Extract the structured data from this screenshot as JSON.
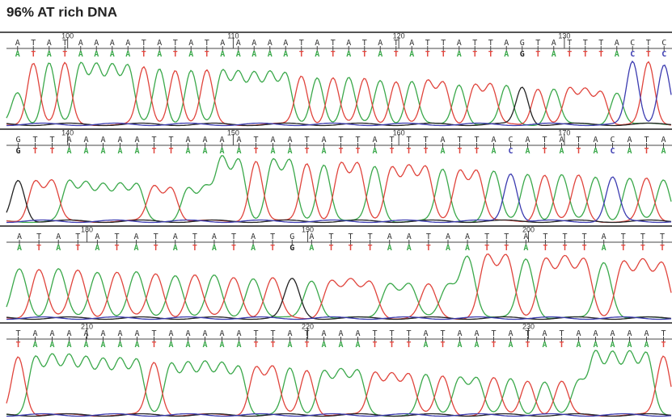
{
  "title": "96% AT rich DNA",
  "panels": [
    {
      "positions": [
        100,
        110,
        120,
        130
      ],
      "bases": [
        "A",
        "T",
        "A",
        "T",
        "A",
        "A",
        "A",
        "A",
        "T",
        "A",
        "T",
        "A",
        "T",
        "A",
        "A",
        "A",
        "A",
        "A",
        "T",
        "A",
        "T",
        "A",
        "T",
        "A",
        "T",
        "A",
        "T",
        "T",
        "A",
        "T",
        "T",
        "A",
        "G",
        "T",
        "A",
        "T",
        "T",
        "T",
        "A",
        "C",
        "T",
        "C"
      ]
    },
    {
      "positions": [
        140,
        150,
        160,
        170
      ],
      "bases": [
        "G",
        "T",
        "T",
        "A",
        "A",
        "A",
        "A",
        "A",
        "T",
        "T",
        "A",
        "A",
        "A",
        "A",
        "T",
        "A",
        "A",
        "T",
        "A",
        "T",
        "T",
        "A",
        "T",
        "T",
        "T",
        "A",
        "T",
        "T",
        "A",
        "C",
        "A",
        "T",
        "A",
        "T",
        "A",
        "C",
        "A",
        "T",
        "A"
      ]
    },
    {
      "positions": [
        180,
        190,
        200
      ],
      "bases": [
        "A",
        "T",
        "A",
        "T",
        "A",
        "T",
        "A",
        "T",
        "A",
        "T",
        "A",
        "T",
        "A",
        "T",
        "G",
        "A",
        "T",
        "T",
        "T",
        "A",
        "A",
        "T",
        "A",
        "A",
        "T",
        "T",
        "A",
        "T",
        "T",
        "T",
        "A",
        "T",
        "T",
        "T"
      ]
    },
    {
      "positions": [
        210,
        220,
        230
      ],
      "bases": [
        "T",
        "A",
        "A",
        "A",
        "A",
        "A",
        "A",
        "A",
        "T",
        "A",
        "A",
        "A",
        "A",
        "A",
        "T",
        "T",
        "A",
        "T",
        "A",
        "A",
        "A",
        "T",
        "T",
        "T",
        "A",
        "T",
        "A",
        "A",
        "T",
        "A",
        "T",
        "A",
        "T",
        "A",
        "A",
        "A",
        "A",
        "A",
        "T"
      ]
    }
  ]
}
